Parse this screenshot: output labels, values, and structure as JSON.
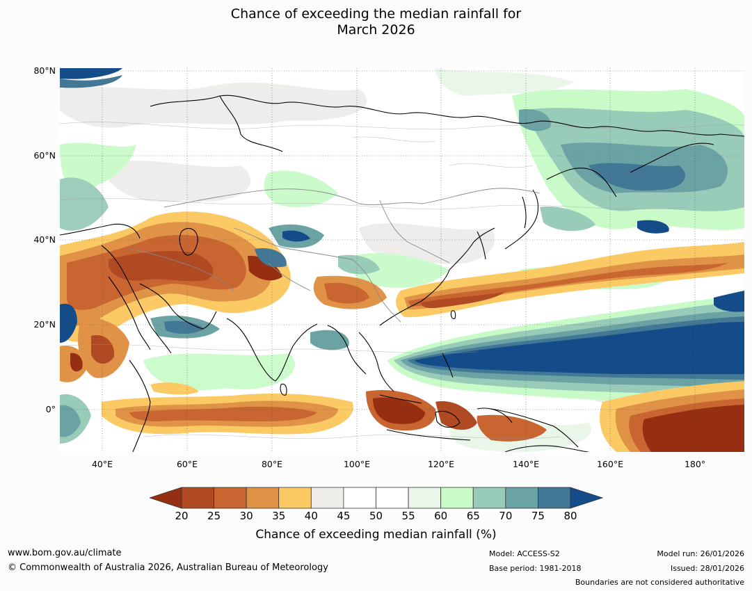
{
  "title_line1": "Chance of exceeding the median rainfall for",
  "title_line2": "March 2026",
  "lat_labels": [
    "80°N",
    "60°N",
    "40°N",
    "20°N",
    "0°"
  ],
  "lon_labels": [
    "40°E",
    "60°E",
    "80°E",
    "100°E",
    "120°E",
    "140°E",
    "160°E",
    "180°"
  ],
  "colorbar": {
    "ticks": [
      "20",
      "25",
      "30",
      "35",
      "40",
      "45",
      "50",
      "55",
      "60",
      "65",
      "70",
      "75",
      "80"
    ],
    "colors": [
      "#962f12",
      "#b04a23",
      "#c86530",
      "#e09346",
      "#fcca65",
      "#efedea",
      "#ffffff",
      "#ffffff",
      "#e9f6e9",
      "#c9fbc9",
      "#99ccb8",
      "#6ba2a4",
      "#427796",
      "#134c88"
    ],
    "label": "Chance of exceeding median rainfall (%)"
  },
  "footer": {
    "website": "www.bom.gov.au/climate",
    "copyright": "© Commonwealth of Australia 2026, Australian Bureau of Meteorology",
    "model": "Model: ACCESS-S2",
    "base_period": "Base period: 1981-2018",
    "model_run": "Model run: 26/01/2026",
    "issued": "Issued: 28/01/2026",
    "boundaries": "Boundaries are not considered authoritative"
  }
}
